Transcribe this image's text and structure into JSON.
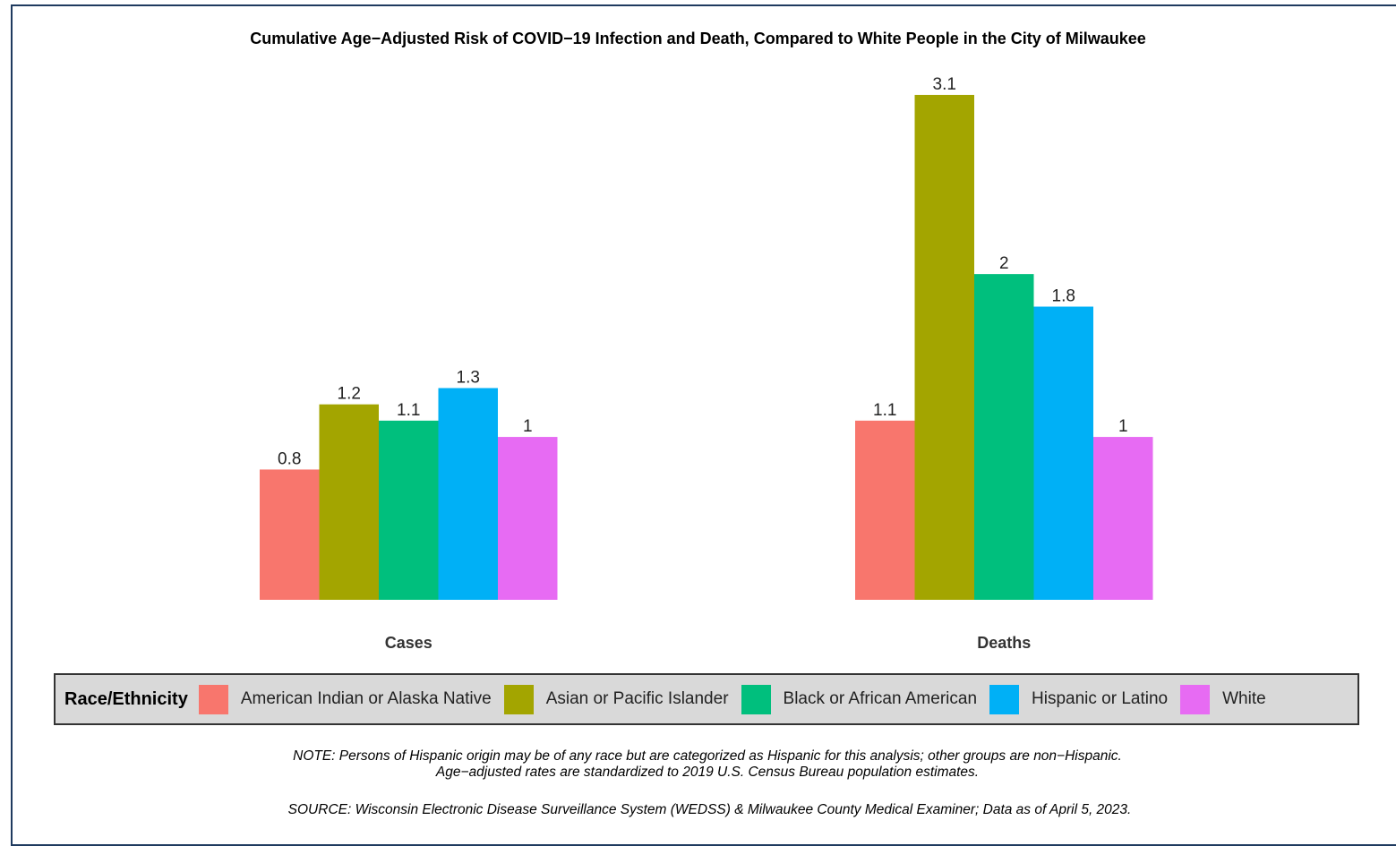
{
  "chart_data": {
    "type": "bar",
    "title": "Cumulative Age−Adjusted Risk of COVID−19 Infection and Death, Compared to White People in the City of Milwaukee",
    "categories": [
      "Cases",
      "Deaths"
    ],
    "series": [
      {
        "name": "American Indian or Alaska Native",
        "color": "#f8766d",
        "values": [
          0.8,
          1.1
        ],
        "labels": [
          "0.8",
          "1.1"
        ]
      },
      {
        "name": "Asian or Pacific Islander",
        "color": "#a3a500",
        "values": [
          1.2,
          3.1
        ],
        "labels": [
          "1.2",
          "3.1"
        ]
      },
      {
        "name": "Black or African American",
        "color": "#00bf7d",
        "values": [
          1.1,
          2.0
        ],
        "labels": [
          "1.1",
          "2"
        ]
      },
      {
        "name": "Hispanic or Latino",
        "color": "#00b0f6",
        "values": [
          1.3,
          1.8
        ],
        "labels": [
          "1.3",
          "1.8"
        ]
      },
      {
        "name": "White",
        "color": "#e76bf3",
        "values": [
          1.0,
          1.0
        ],
        "labels": [
          "1",
          "1"
        ]
      }
    ],
    "ylim": [
      0,
      3.1
    ],
    "grid": false,
    "legend_position": "bottom",
    "legend_title": "Race/Ethnicity"
  },
  "footer": {
    "note_line1": "NOTE: Persons of Hispanic origin may be of any race but are categorized as Hispanic for this analysis; other groups are non−Hispanic.",
    "note_line2": "Age−adjusted rates are standardized to 2019 U.S. Census Bureau population estimates.",
    "source": "SOURCE: Wisconsin Electronic Disease Surveillance System (WEDSS) & Milwaukee County Medical Examiner; Data as of April 5, 2023."
  }
}
